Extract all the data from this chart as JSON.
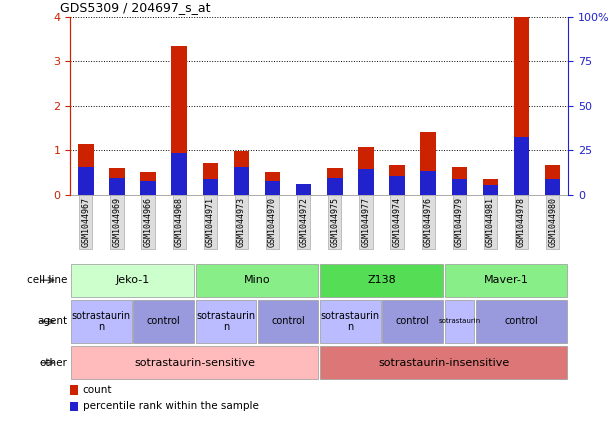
{
  "title": "GDS5309 / 204697_s_at",
  "samples": [
    "GSM1044967",
    "GSM1044969",
    "GSM1044966",
    "GSM1044968",
    "GSM1044971",
    "GSM1044973",
    "GSM1044970",
    "GSM1044972",
    "GSM1044975",
    "GSM1044977",
    "GSM1044974",
    "GSM1044976",
    "GSM1044979",
    "GSM1044981",
    "GSM1044978",
    "GSM1044980"
  ],
  "count_values": [
    1.15,
    0.6,
    0.5,
    3.35,
    0.72,
    0.97,
    0.5,
    0.2,
    0.6,
    1.07,
    0.67,
    1.42,
    0.62,
    0.35,
    4.0,
    0.67
  ],
  "percentile_values": [
    15.5,
    9.5,
    7.5,
    23.5,
    8.5,
    15.5,
    7.5,
    6.0,
    9.5,
    14.5,
    10.5,
    13.0,
    8.5,
    5.5,
    32.5,
    8.5
  ],
  "ylim_left": [
    0,
    4
  ],
  "ylim_right": [
    0,
    100
  ],
  "yticks_left": [
    0,
    1,
    2,
    3,
    4
  ],
  "yticks_right_vals": [
    0,
    25,
    50,
    75,
    100
  ],
  "yticks_right_labels": [
    "0",
    "25",
    "50",
    "75",
    "100%"
  ],
  "count_color": "#cc2200",
  "percentile_color": "#2222cc",
  "bar_width": 0.5,
  "cell_line_groups": [
    {
      "name": "Jeko-1",
      "start": 0,
      "end": 3,
      "color": "#ccffcc"
    },
    {
      "name": "Mino",
      "start": 4,
      "end": 7,
      "color": "#88ee88"
    },
    {
      "name": "Z138",
      "start": 8,
      "end": 11,
      "color": "#55dd55"
    },
    {
      "name": "Maver-1",
      "start": 12,
      "end": 15,
      "color": "#88ee88"
    }
  ],
  "agent_groups": [
    {
      "name": "sotrastaurin\nn",
      "start": 0,
      "end": 1,
      "color": "#bbbbff"
    },
    {
      "name": "control",
      "start": 2,
      "end": 3,
      "color": "#9999dd"
    },
    {
      "name": "sotrastaurin\nn",
      "start": 4,
      "end": 5,
      "color": "#bbbbff"
    },
    {
      "name": "control",
      "start": 6,
      "end": 7,
      "color": "#9999dd"
    },
    {
      "name": "sotrastaurin\nn",
      "start": 8,
      "end": 9,
      "color": "#bbbbff"
    },
    {
      "name": "control",
      "start": 10,
      "end": 11,
      "color": "#9999dd"
    },
    {
      "name": "sotrastaurin",
      "start": 12,
      "end": 12,
      "color": "#bbbbff"
    },
    {
      "name": "control",
      "start": 13,
      "end": 15,
      "color": "#9999dd"
    }
  ],
  "other_groups": [
    {
      "name": "sotrastaurin-sensitive",
      "start": 0,
      "end": 7,
      "color": "#ffbbbb"
    },
    {
      "name": "sotrastaurin-insensitive",
      "start": 8,
      "end": 15,
      "color": "#dd7777"
    }
  ],
  "legend_count": "count",
  "legend_percentile": "percentile rank within the sample",
  "count_color_leg": "#cc2200",
  "percentile_color_leg": "#2222cc"
}
